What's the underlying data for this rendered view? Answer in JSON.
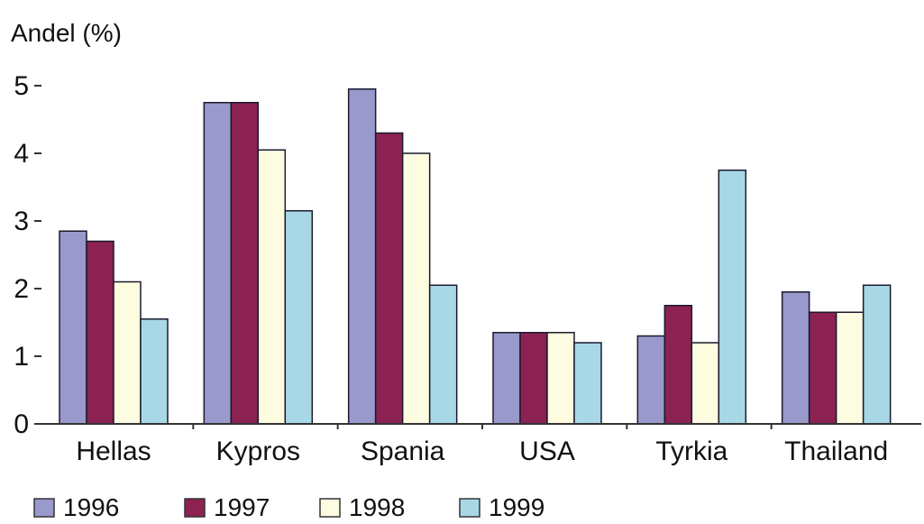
{
  "chart_data": {
    "type": "bar",
    "ylabel": "Andel (%)",
    "xlabel": "",
    "ylim": [
      0,
      5.5
    ],
    "yticks": [
      0,
      1,
      2,
      3,
      4,
      5
    ],
    "grid": false,
    "legend_position": "bottom-left",
    "categories": [
      "Hellas",
      "Kypros",
      "Spania",
      "USA",
      "Tyrkia",
      "Thailand"
    ],
    "series": [
      {
        "name": "1996",
        "color": "#9999cc",
        "values": [
          2.85,
          4.75,
          4.95,
          1.35,
          1.3,
          1.95
        ]
      },
      {
        "name": "1997",
        "color": "#8b2252",
        "values": [
          2.7,
          4.75,
          4.3,
          1.35,
          1.75,
          1.65
        ]
      },
      {
        "name": "1998",
        "color": "#fdfbe0",
        "values": [
          2.1,
          4.05,
          4.0,
          1.35,
          1.2,
          1.65
        ]
      },
      {
        "name": "1999",
        "color": "#a8d8e6",
        "values": [
          1.55,
          3.15,
          2.05,
          1.2,
          3.75,
          2.05
        ]
      }
    ]
  }
}
